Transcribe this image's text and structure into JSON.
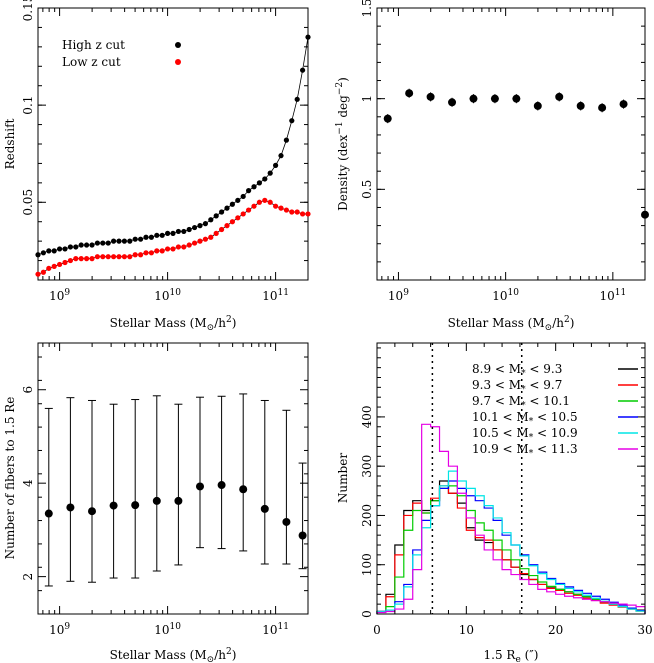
{
  "chart_data": [
    {
      "type": "scatter",
      "xlabel": "Stellar Mass (M",
      "xlabel_suffix": "/h",
      "ylabel": "Redshift",
      "xscale": "log",
      "xlim": [
        8.8,
        11.3
      ],
      "ylim": [
        0.01,
        0.15
      ],
      "xticks": [
        "10",
        "10",
        "10"
      ],
      "xtick_exps": [
        "9",
        "10",
        "11"
      ],
      "yticks": [
        "0.05",
        "0.1",
        "0.15"
      ],
      "legend_position": "top-left",
      "series": [
        {
          "name": "High z cut",
          "color": "#000000",
          "x": [
            8.8,
            8.85,
            8.9,
            8.95,
            9.0,
            9.05,
            9.1,
            9.15,
            9.2,
            9.25,
            9.3,
            9.35,
            9.4,
            9.45,
            9.5,
            9.55,
            9.6,
            9.65,
            9.7,
            9.75,
            9.8,
            9.85,
            9.9,
            9.95,
            10.0,
            10.05,
            10.1,
            10.15,
            10.2,
            10.25,
            10.3,
            10.35,
            10.4,
            10.45,
            10.5,
            10.55,
            10.6,
            10.65,
            10.7,
            10.75,
            10.8,
            10.85,
            10.9,
            10.95,
            11.0,
            11.05,
            11.1,
            11.15,
            11.2,
            11.25,
            11.3
          ],
          "y": [
            0.023,
            0.024,
            0.025,
            0.025,
            0.026,
            0.026,
            0.027,
            0.027,
            0.028,
            0.028,
            0.028,
            0.029,
            0.029,
            0.029,
            0.03,
            0.03,
            0.03,
            0.03,
            0.031,
            0.031,
            0.032,
            0.032,
            0.033,
            0.033,
            0.034,
            0.034,
            0.035,
            0.035,
            0.036,
            0.037,
            0.038,
            0.039,
            0.041,
            0.043,
            0.045,
            0.047,
            0.049,
            0.051,
            0.053,
            0.056,
            0.058,
            0.06,
            0.062,
            0.065,
            0.069,
            0.074,
            0.082,
            0.092,
            0.103,
            0.118,
            0.135
          ]
        },
        {
          "name": "Low z cut",
          "color": "#ff0000",
          "x": [
            8.8,
            8.85,
            8.9,
            8.95,
            9.0,
            9.05,
            9.1,
            9.15,
            9.2,
            9.25,
            9.3,
            9.35,
            9.4,
            9.45,
            9.5,
            9.55,
            9.6,
            9.65,
            9.7,
            9.75,
            9.8,
            9.85,
            9.9,
            9.95,
            10.0,
            10.05,
            10.1,
            10.15,
            10.2,
            10.25,
            10.3,
            10.35,
            10.4,
            10.45,
            10.5,
            10.55,
            10.6,
            10.65,
            10.7,
            10.75,
            10.8,
            10.85,
            10.9,
            10.95,
            11.0,
            11.05,
            11.1,
            11.15,
            11.2,
            11.25,
            11.3
          ],
          "y": [
            0.013,
            0.014,
            0.016,
            0.017,
            0.018,
            0.019,
            0.02,
            0.021,
            0.021,
            0.021,
            0.021,
            0.022,
            0.022,
            0.022,
            0.022,
            0.022,
            0.022,
            0.022,
            0.023,
            0.023,
            0.024,
            0.024,
            0.025,
            0.025,
            0.026,
            0.026,
            0.027,
            0.027,
            0.028,
            0.029,
            0.03,
            0.031,
            0.032,
            0.034,
            0.036,
            0.038,
            0.04,
            0.042,
            0.044,
            0.046,
            0.048,
            0.05,
            0.051,
            0.05,
            0.048,
            0.047,
            0.046,
            0.045,
            0.045,
            0.044,
            0.044
          ]
        }
      ]
    },
    {
      "type": "scatter",
      "xlabel": "Stellar Mass (M",
      "xlabel_suffix": "/h",
      "ylabel": "Density (dex",
      "ylabel_mid": " deg",
      "ylabel_end": ")",
      "xscale": "log",
      "xlim": [
        8.8,
        11.3
      ],
      "ylim": [
        0,
        1.5
      ],
      "xticks": [
        "10",
        "10",
        "10"
      ],
      "xtick_exps": [
        "9",
        "10",
        "11"
      ],
      "yticks": [
        "0.5",
        "1",
        "1.5"
      ],
      "series": [
        {
          "x": [
            8.9,
            9.1,
            9.3,
            9.5,
            9.7,
            9.9,
            10.1,
            10.3,
            10.5,
            10.7,
            10.9,
            11.1,
            11.3
          ],
          "y": [
            0.89,
            1.03,
            1.01,
            0.98,
            1.0,
            1.0,
            1.0,
            0.96,
            1.01,
            0.96,
            0.95,
            0.97,
            0.36
          ],
          "yerr": [
            0.025,
            0.025,
            0.025,
            0.025,
            0.025,
            0.025,
            0.025,
            0.025,
            0.025,
            0.025,
            0.025,
            0.025,
            0.01
          ]
        }
      ]
    },
    {
      "type": "scatter",
      "xlabel": "Stellar Mass (M",
      "xlabel_suffix": "/h",
      "ylabel": "Number of fibers to 1.5 Re",
      "xscale": "log",
      "xlim": [
        8.8,
        11.3
      ],
      "ylim": [
        1.2,
        7
      ],
      "xticks": [
        "10",
        "10",
        "10"
      ],
      "xtick_exps": [
        "9",
        "10",
        "11"
      ],
      "yticks": [
        "2",
        "4",
        "6"
      ],
      "series": [
        {
          "x": [
            8.9,
            9.1,
            9.3,
            9.5,
            9.7,
            9.9,
            10.1,
            10.3,
            10.5,
            10.7,
            10.9,
            11.1,
            11.25
          ],
          "y": [
            3.35,
            3.48,
            3.4,
            3.52,
            3.53,
            3.62,
            3.62,
            3.93,
            3.96,
            3.87,
            3.45,
            3.17,
            2.88
          ],
          "ylow": [
            1.8,
            1.9,
            1.88,
            1.97,
            1.97,
            2.12,
            2.25,
            2.62,
            2.6,
            2.55,
            2.27,
            2.27,
            2.17
          ],
          "yhigh": [
            5.6,
            5.83,
            5.77,
            5.69,
            5.79,
            5.87,
            5.69,
            5.84,
            5.86,
            5.91,
            5.77,
            5.56,
            4.43
          ]
        }
      ]
    },
    {
      "type": "histogram",
      "xlabel": "1.5 R",
      "xlabel_sub": "e",
      "xlabel_unit": " (″)",
      "ylabel": "Number",
      "xlim": [
        0,
        30
      ],
      "ylim": [
        0,
        550
      ],
      "xticks": [
        "0",
        "10",
        "20",
        "30"
      ],
      "yticks": [
        "0",
        "100",
        "200",
        "300",
        "400"
      ],
      "vlines": [
        6.2,
        16.2
      ],
      "bin_edges": [
        0,
        1,
        2,
        3,
        4,
        5,
        6,
        7,
        8,
        9,
        10,
        11,
        12,
        13,
        14,
        15,
        16,
        17,
        18,
        19,
        20,
        21,
        22,
        23,
        24,
        25,
        26,
        27,
        28,
        29,
        30
      ],
      "series": [
        {
          "name": "8.9 < M* < 9.3",
          "color": "#000000",
          "counts": [
            5,
            40,
            140,
            210,
            230,
            210,
            230,
            270,
            245,
            225,
            175,
            150,
            145,
            130,
            110,
            95,
            80,
            70,
            60,
            55,
            50,
            45,
            40,
            35,
            30,
            25,
            20,
            15,
            12,
            8
          ]
        },
        {
          "name": "9.3 < M* < 9.7",
          "color": "#ff0000",
          "counts": [
            5,
            35,
            120,
            200,
            225,
            205,
            235,
            260,
            245,
            215,
            170,
            155,
            150,
            130,
            110,
            95,
            82,
            70,
            60,
            52,
            48,
            42,
            38,
            32,
            28,
            22,
            18,
            14,
            10,
            6
          ]
        },
        {
          "name": "9.7 < M* < 10.1",
          "color": "#00cc00",
          "counts": [
            5,
            15,
            75,
            170,
            210,
            205,
            230,
            255,
            260,
            240,
            210,
            185,
            170,
            150,
            130,
            110,
            92,
            78,
            65,
            56,
            50,
            45,
            40,
            35,
            30,
            25,
            20,
            15,
            10,
            6
          ]
        },
        {
          "name": "10.1 < M* < 10.5",
          "color": "#0000ff",
          "counts": [
            5,
            8,
            25,
            60,
            130,
            190,
            220,
            255,
            270,
            255,
            240,
            230,
            215,
            190,
            160,
            140,
            120,
            100,
            85,
            72,
            62,
            55,
            48,
            42,
            36,
            30,
            24,
            18,
            12,
            7
          ]
        },
        {
          "name": "10.5 < M* < 10.9",
          "color": "#00e5e5",
          "counts": [
            5,
            8,
            20,
            55,
            120,
            175,
            220,
            260,
            290,
            270,
            255,
            240,
            220,
            195,
            165,
            140,
            118,
            98,
            82,
            70,
            60,
            52,
            45,
            38,
            32,
            26,
            20,
            15,
            10,
            6
          ]
        },
        {
          "name": "10.9 < M* < 11.3",
          "color": "#e500e5",
          "counts": [
            3,
            5,
            10,
            30,
            90,
            385,
            380,
            330,
            300,
            245,
            195,
            160,
            130,
            110,
            90,
            80,
            70,
            60,
            50,
            45,
            40,
            36,
            33,
            30,
            27,
            25,
            22,
            20,
            18,
            15
          ]
        }
      ]
    }
  ]
}
